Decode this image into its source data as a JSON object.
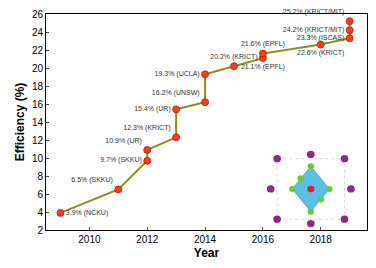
{
  "chart_data": {
    "type": "line",
    "x_label": "Year",
    "y_label": "Efficiency (%)",
    "x": [
      2009,
      2011,
      2012,
      2012,
      2013,
      2013,
      2014,
      2014,
      2015,
      2016,
      2016,
      2018,
      2019,
      2019,
      2019
    ],
    "values": [
      3.9,
      6.5,
      9.7,
      10.9,
      12.3,
      15.4,
      16.2,
      19.3,
      20.2,
      21.1,
      21.6,
      22.6,
      23.3,
      24.2,
      25.2
    ],
    "value_labels": [
      "3.9% (NCKU)",
      "6.5% (SKKU)",
      "9.7% (SKKU)",
      "10.9% (UR)",
      "12.3% (KRICT)",
      "15.4% (UR)",
      "16.2% (UNSW)",
      "19.3% (UCLA)",
      "20.2% (KRICT)",
      "21.1% (EPFL)",
      "21.6% (EPFL)",
      "22.6% (KRICT)",
      "23.3% (ISCAS)",
      "24.2% (KRICT/MIT)",
      "25.2% (KRICT/MIT)"
    ],
    "data_labels": true,
    "color": "#8c8c1e",
    "marker": "circle",
    "xlim": [
      2008.5,
      2019.6
    ],
    "xticks": [
      2010,
      2012,
      2014,
      2016,
      2018
    ],
    "ylim": [
      2,
      26
    ],
    "yticks": [
      2,
      4,
      6,
      8,
      10,
      12,
      14,
      16,
      18,
      20,
      22,
      24,
      26
    ],
    "grid": false
  }
}
